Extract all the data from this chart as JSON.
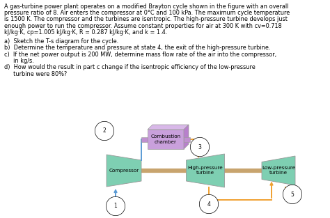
{
  "compressor_color": "#7ecfb2",
  "turbine_color": "#7ecfb2",
  "combustion_front_color": "#c9a0dc",
  "combustion_top_color": "#d8b8e8",
  "combustion_side_color": "#b880cc",
  "shaft_color": "#c8a46e",
  "pipe_color": "#c090d0",
  "arrow_blue_color": "#5b9bd5",
  "arrow_orange_color": "#f0a030",
  "bg_color": "#ffffff",
  "text_color": "#000000",
  "edge_color": "#999999",
  "para_lines": [
    "A gas-turbine power plant operates on a modified Brayton cycle shown in the figure with an overall",
    "pressure ratio of 8. Air enters the compressor at 0°C and 100 kPa. The maximum cycle temperature",
    "is 1500 K. The compressor and the turbines are isentropic. The high-pressure turbine develops just",
    "enough power to run the compressor. Assume constant properties for air at 300 K with cv=0.718",
    "kJ/kg·K, cp=1.005 kJ/kg·K, R = 0.287 kJ/kg·K, and k = 1.4."
  ],
  "bold_words": [
    "8",
    "0°C",
    "100 kPa",
    "1500 K",
    "300 K",
    "cv=0.718",
    "kJ/kg·K,",
    "cp=1.005 kJ/kg·K,",
    "R = 0.287 kJ/kg·K,",
    "k = 1.4"
  ],
  "question_lines": [
    "a)  Sketch the T-s diagram for the cycle.",
    "b)  Determine the temperature and pressure at state 4, the exit of the high-pressure turbine.",
    "c)  If the net power output is 200 MW, determine mass flow rate of the air into the compressor,",
    "     in kg/s.",
    "d)  How would the result in part c change if the isentropic efficiency of the low-pressure",
    "     turbine were 80%?"
  ]
}
